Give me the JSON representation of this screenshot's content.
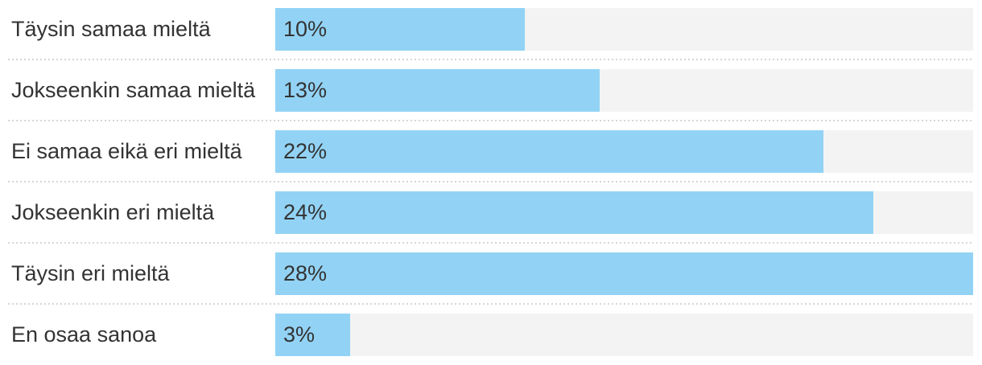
{
  "chart_data": {
    "type": "bar",
    "orientation": "horizontal",
    "title": "",
    "xlabel": "",
    "ylabel": "",
    "categories": [
      "Täysin samaa mieltä",
      "Jokseenkin samaa mieltä",
      "Ei samaa eikä eri mieltä",
      "Jokseenkin eri mieltä",
      "Täysin eri mieltä",
      "En osaa sanoa"
    ],
    "values": [
      10,
      13,
      22,
      24,
      28,
      3
    ],
    "value_labels": [
      "10%",
      "13%",
      "22%",
      "24%",
      "28%",
      "3%"
    ],
    "unit": "%",
    "xlim": [
      0,
      28
    ],
    "legend": "none",
    "grid": "dotted horizontal separators between rows",
    "bar_label_position": "inside-left"
  },
  "colors": {
    "bar_fill": "#92d3f5",
    "bar_track": "#f3f3f3",
    "label_text": "#333333",
    "value_text": "#333333",
    "separator": "#d6d6d6",
    "background": "#ffffff"
  },
  "rows": [
    {
      "label": "Täysin samaa mieltä",
      "value": 10,
      "value_label": "10%"
    },
    {
      "label": "Jokseenkin samaa mieltä",
      "value": 13,
      "value_label": "13%"
    },
    {
      "label": "Ei samaa eikä eri mieltä",
      "value": 22,
      "value_label": "22%"
    },
    {
      "label": "Jokseenkin eri mieltä",
      "value": 24,
      "value_label": "24%"
    },
    {
      "label": "Täysin eri mieltä",
      "value": 28,
      "value_label": "28%"
    },
    {
      "label": "En osaa sanoa",
      "value": 3,
      "value_label": "3%"
    }
  ]
}
